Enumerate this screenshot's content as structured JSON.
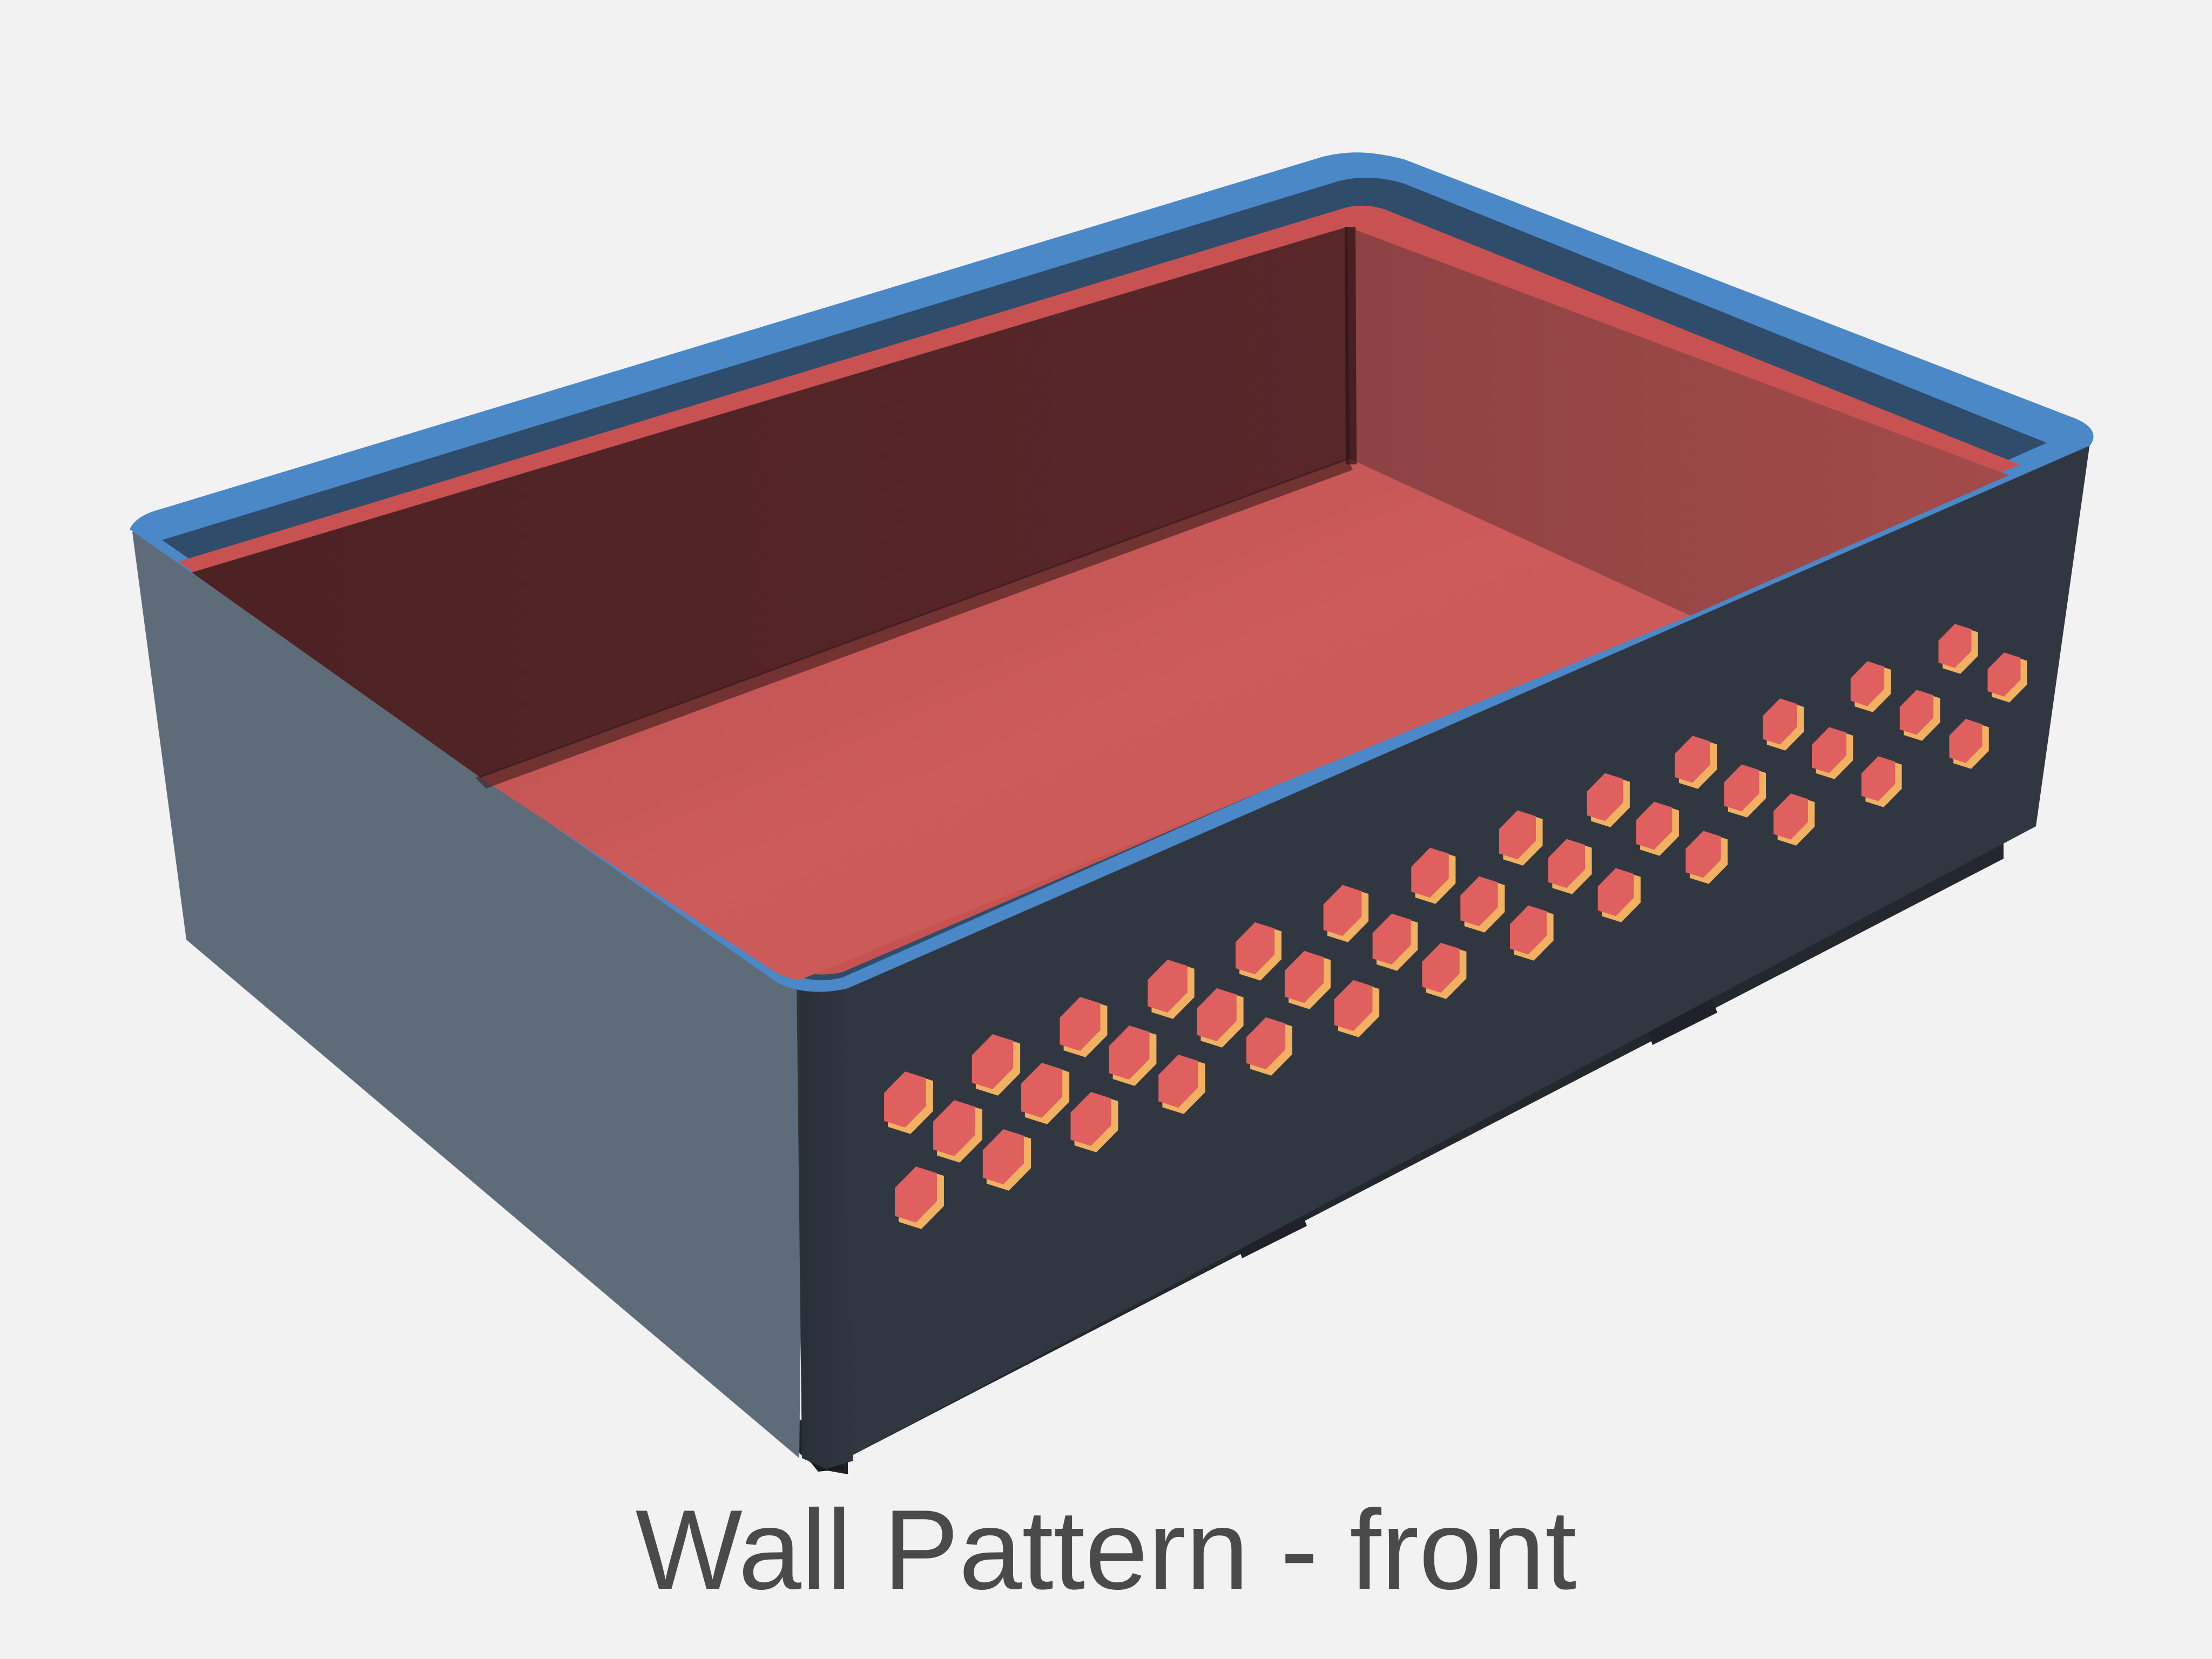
{
  "caption": "Wall Pattern - front",
  "model": {
    "name": "bin with hexagonal wall pattern",
    "pattern": "hexagon",
    "pattern_wall": "front"
  },
  "colors": {
    "background": "#f2f2f2",
    "outer_wall": "#313741",
    "side_wall": "#5e6c7a",
    "rim": "#4a88c8",
    "rim_dark": "#2f4c6a",
    "interior_back": "#532426",
    "interior_right": "#9c4948",
    "interior_floor": "#cc5a59",
    "lip_red": "#c85252",
    "hole_fill": "#e06060",
    "hole_edge": "#f2b061",
    "base": "#1f2329",
    "caption": "#4a4a4a"
  }
}
